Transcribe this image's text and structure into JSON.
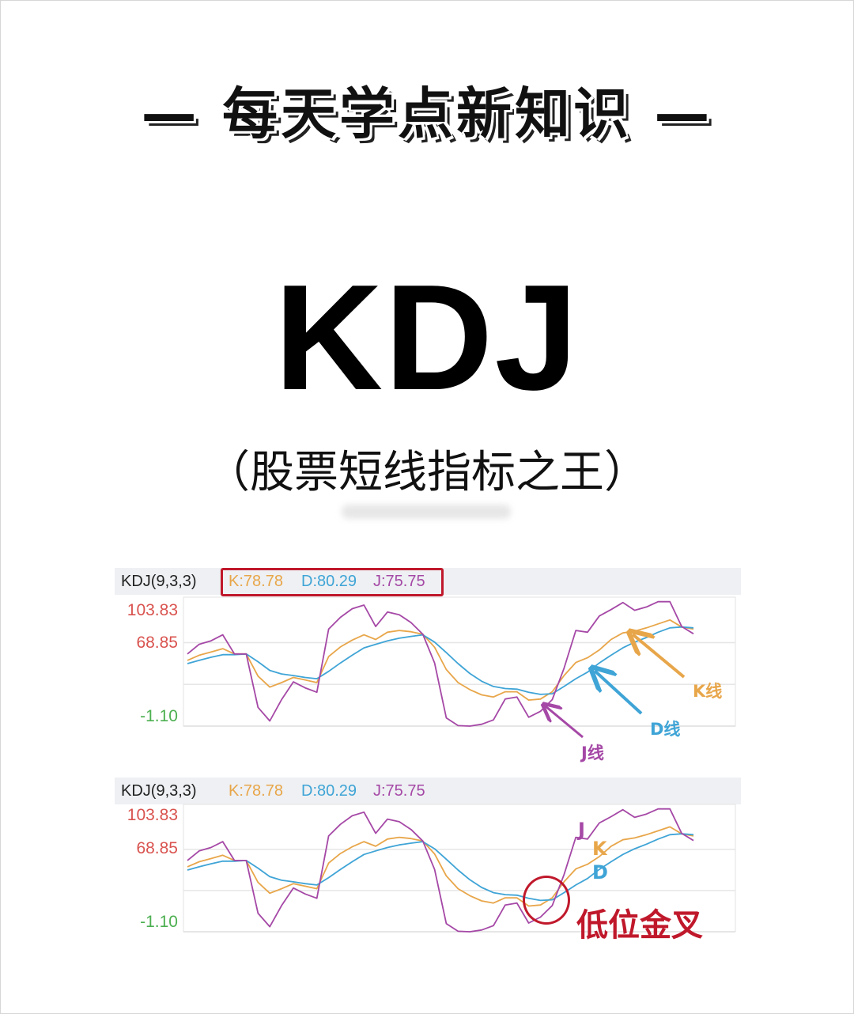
{
  "header": {
    "title": "— 每天学点新知识 —",
    "main_title": "KDJ",
    "subtitle": "（股票短线指标之王）"
  },
  "colors": {
    "k": "#e8a64a",
    "d": "#3fa4d6",
    "j": "#a548a6",
    "highlight": "#c0182b",
    "y_top": "#d9534f",
    "y_bottom": "#4caf50"
  },
  "chart_data": [
    {
      "type": "line",
      "indicator_label": "KDJ(9,3,3)",
      "legend": [
        "K:78.78",
        "D:80.29",
        "J:75.75"
      ],
      "yticks": [
        "103.83",
        "68.85",
        "-1.10"
      ],
      "ylim": [
        -1.1,
        107
      ],
      "grid": true,
      "series": [
        {
          "name": "K",
          "values": [
            54.0,
            58.3,
            61.0,
            63.8,
            59.4,
            59.4,
            40.8,
            31.6,
            35.4,
            39.7,
            37.6,
            35.4,
            57.2,
            65.3,
            71.0,
            75.4,
            71.5,
            77.6,
            79.1,
            78.0,
            75.9,
            65.0,
            46.3,
            35.4,
            29.5,
            25.1,
            23.3,
            27.7,
            27.7,
            20.7,
            21.6,
            27.7,
            41.3,
            52.2,
            56.2,
            62.7,
            71.5,
            77.0,
            78.5,
            81.3,
            84.6,
            87.9,
            82.0,
            80.2
          ]
        },
        {
          "name": "D",
          "values": [
            51.3,
            54.0,
            56.6,
            58.8,
            58.8,
            59.4,
            52.9,
            45.6,
            42.6,
            41.3,
            39.7,
            38.6,
            44.8,
            51.8,
            58.3,
            64.5,
            67.5,
            70.4,
            72.6,
            74.1,
            75.4,
            69.3,
            60.5,
            51.3,
            43.0,
            36.5,
            32.1,
            30.4,
            29.9,
            27.3,
            25.5,
            26.0,
            32.1,
            38.6,
            44.1,
            51.8,
            58.3,
            64.5,
            69.3,
            73.2,
            77.6,
            81.3,
            82.0,
            81.3
          ]
        },
        {
          "name": "J",
          "values": [
            59.4,
            67.5,
            70.4,
            75.4,
            59.4,
            59.4,
            14.6,
            3.2,
            21.1,
            36.0,
            31.0,
            27.3,
            80.2,
            90.1,
            97.3,
            100.4,
            82.4,
            94.5,
            92.3,
            85.7,
            75.9,
            51.8,
            5.8,
            -0.7,
            -1.1,
            0.4,
            4.1,
            21.6,
            23.3,
            6.3,
            11.3,
            21.1,
            47.4,
            79.1,
            77.6,
            91.2,
            96.6,
            102.5,
            96.0,
            98.8,
            103.2,
            103.2,
            82.4,
            76.3
          ]
        }
      ],
      "annotations": {
        "k": "K线",
        "d": "D线",
        "j": "J线"
      }
    },
    {
      "type": "line",
      "indicator_label": "KDJ(9,3,3)",
      "legend": [
        "K:78.78",
        "D:80.29",
        "J:75.75"
      ],
      "yticks": [
        "103.83",
        "68.85",
        "-1.10"
      ],
      "ylim": [
        -1.1,
        107
      ],
      "grid": true,
      "series": "same as chart 1",
      "annotations": {
        "j": "J",
        "k": "K",
        "d": "D",
        "cross": "低位金叉"
      }
    }
  ]
}
